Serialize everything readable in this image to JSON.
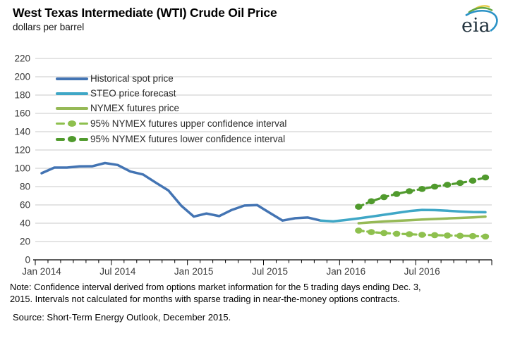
{
  "header": {
    "title": "West Texas Intermediate (WTI) Crude Oil Price",
    "subtitle": "dollars per barrel",
    "logo_text": "eia"
  },
  "chart_data": {
    "type": "line",
    "title": "West Texas Intermediate (WTI) Crude Oil Price",
    "ylabel": "dollars per barrel",
    "ylim": [
      0,
      220
    ],
    "ytick_interval": 20,
    "grid": true,
    "legend_position": "top-left-inside",
    "x_start": "Jan 2014",
    "x_end": "Dec 2016",
    "x_tick_labels": [
      "Jan 2014",
      "Jul 2014",
      "Jan 2015",
      "Jul 2015",
      "Jan 2016",
      "Jul 2016"
    ],
    "x_minor_tick": "monthly",
    "series": [
      {
        "id": "historical-spot-price",
        "name": "Historical spot price",
        "style": "solid",
        "legend_color": "#4374b3",
        "line_color": "#4374b3",
        "start": "Jan 2014",
        "start_month_index": 0,
        "values": [
          94.6,
          100.8,
          100.8,
          102.1,
          102.2,
          105.8,
          103.6,
          96.5,
          93.2,
          84.4,
          75.8,
          59.3,
          47.2,
          50.6,
          47.8,
          54.5,
          59.3,
          59.8,
          51.2,
          42.9,
          45.5,
          46.2,
          42.9
        ]
      },
      {
        "id": "steo-price-forecast",
        "name": "STEO price forecast",
        "style": "solid",
        "legend_color": "#3fa7c6",
        "line_color": "#3fa7c6",
        "start": "Nov 2015",
        "start_month_index": 22,
        "values": [
          42.9,
          42.0,
          43.5,
          45.3,
          47.2,
          49.2,
          51.2,
          53.2,
          54.5,
          54.3,
          53.6,
          52.8,
          52.2,
          52.0
        ]
      },
      {
        "id": "nymex-futures-price",
        "name": "NYMEX futures price",
        "style": "solid",
        "legend_color": "#96b956",
        "line_color": "#96b956",
        "start": "Feb 2016",
        "start_month_index": 25,
        "values": [
          40.0,
          41.0,
          41.9,
          42.6,
          43.3,
          44.0,
          44.6,
          45.2,
          45.8,
          46.4,
          47.2
        ]
      },
      {
        "id": "nymex-upper-confidence",
        "name": "95% NYMEX futures upper confidence interval",
        "style": "dashed-with-markers",
        "legend_color": "#8ec04e",
        "line_color": "#509a2d",
        "start": "Feb 2016",
        "start_month_index": 25,
        "values": [
          58.0,
          64.0,
          68.5,
          72.0,
          75.0,
          77.5,
          80.0,
          82.0,
          84.0,
          86.5,
          90.0
        ]
      },
      {
        "id": "nymex-lower-confidence",
        "name": "95% NYMEX futures lower confidence interval",
        "style": "dashed-with-markers",
        "legend_color": "#509a2d",
        "line_color": "#8ec04e",
        "start": "Feb 2016",
        "start_month_index": 25,
        "values": [
          32.0,
          30.3,
          29.3,
          28.5,
          28.0,
          27.4,
          27.0,
          26.6,
          26.3,
          26.0,
          25.5
        ]
      }
    ]
  },
  "footer": {
    "note_line1": "Note: Confidence interval derived from options market information for the 5 trading days ending Dec. 3,",
    "note_line2": "2015. Intervals not calculated for months with sparse trading in near-the-money options contracts.",
    "source": "Source: Short-Term Energy Outlook, December 2015."
  },
  "colors": {
    "gridline": "#c9c9c9",
    "axis": "#000000",
    "historical_blue": "#4374b3",
    "steo_cyan": "#3fa7c6",
    "nymex_green": "#96b956",
    "ci_legend_upper_green": "#8ec04e",
    "ci_legend_lower_green": "#509a2d"
  }
}
